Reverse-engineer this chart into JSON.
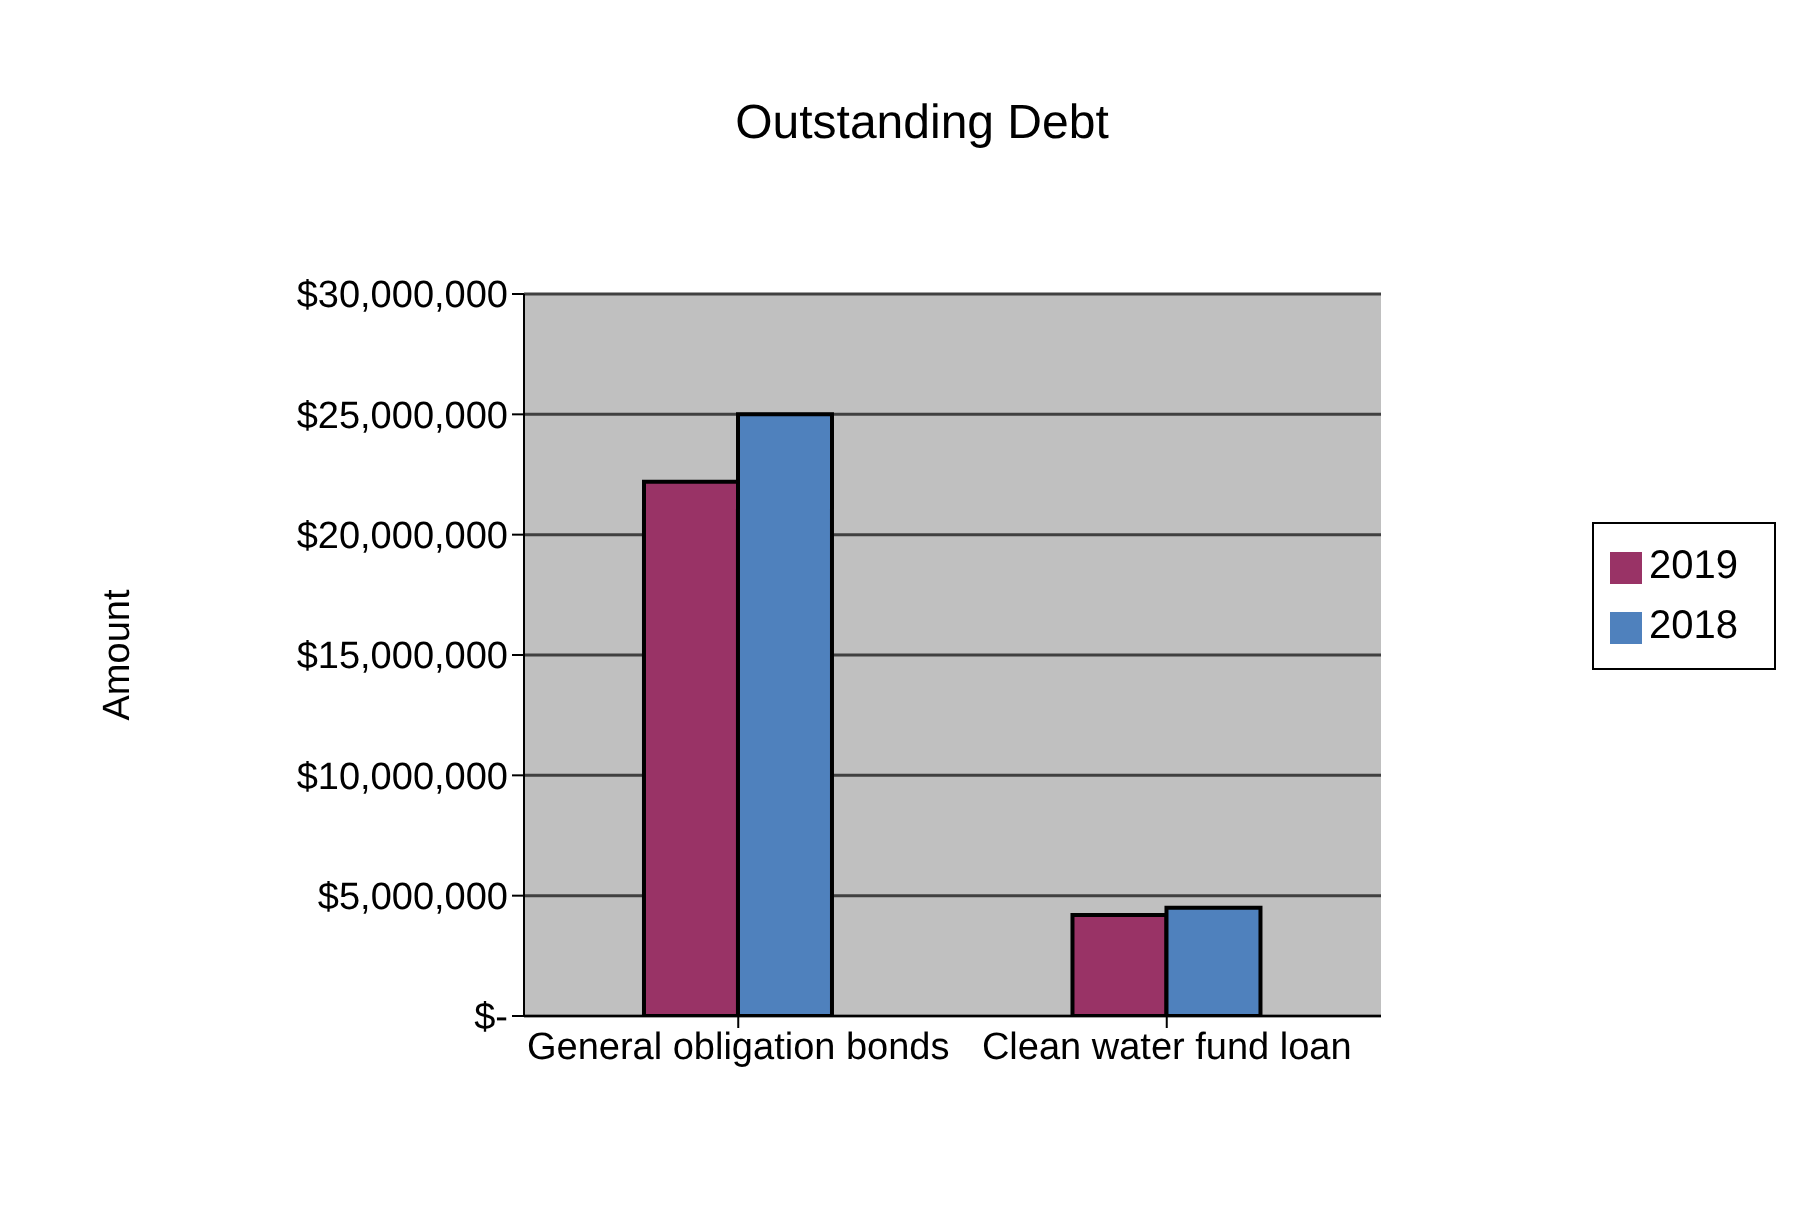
{
  "chart_data": {
    "type": "bar",
    "title": "Outstanding Debt",
    "ylabel": "Amount",
    "categories": [
      "General obligation bonds",
      "Clean water fund loan"
    ],
    "series": [
      {
        "name": "2019",
        "color": "#993366",
        "values": [
          22200000,
          4200000
        ]
      },
      {
        "name": "2018",
        "color": "#4f81bd",
        "values": [
          25000000,
          4500000
        ]
      }
    ],
    "ylim": [
      0,
      30000000
    ],
    "yticks": [
      {
        "value": 0,
        "label": "$-"
      },
      {
        "value": 5000000,
        "label": "$5,000,000"
      },
      {
        "value": 10000000,
        "label": "$10,000,000"
      },
      {
        "value": 15000000,
        "label": "$15,000,000"
      },
      {
        "value": 20000000,
        "label": "$20,000,000"
      },
      {
        "value": 25000000,
        "label": "$25,000,000"
      },
      {
        "value": 30000000,
        "label": "$30,000,000"
      }
    ],
    "grid": "y",
    "legend": "right"
  }
}
